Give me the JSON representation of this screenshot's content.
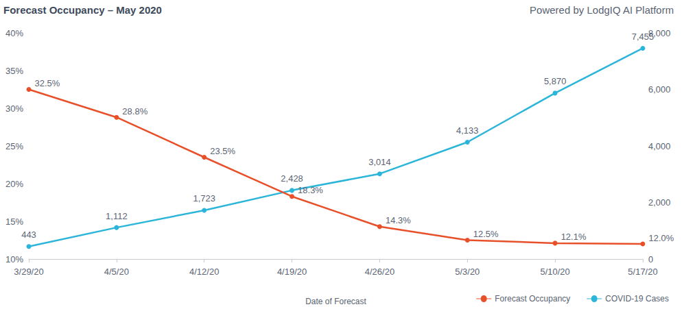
{
  "chart_data": {
    "type": "line",
    "title": "Forecast Occupancy – May 2020",
    "subtitle": "Powered by LodgIQ AI Platform",
    "x_label": "Date of Forecast",
    "categories": [
      "3/29/20",
      "4/5/20",
      "4/12/20",
      "4/19/20",
      "4/26/20",
      "5/3/20",
      "5/10/20",
      "5/17/20"
    ],
    "series": [
      {
        "name": "Forecast Occupancy",
        "color": "#e8502a",
        "axis": "y",
        "values": [
          32.5,
          28.8,
          23.5,
          18.3,
          14.3,
          12.5,
          12.1,
          12.0
        ],
        "value_labels": [
          "32.5%",
          "28.8%",
          "23.5%",
          "18.3%",
          "14.3%",
          "12.5%",
          "12.1%",
          "12.0%"
        ]
      },
      {
        "name": "COVID-19 Cases",
        "color": "#2bb5d9",
        "axis": "y2",
        "values": [
          443,
          1112,
          1723,
          2428,
          3014,
          4133,
          5870,
          7455
        ],
        "value_labels": [
          "443",
          "1,112",
          "1,723",
          "2,428",
          "3,014",
          "4,133",
          "5,870",
          "7,455"
        ]
      }
    ],
    "ylim": [
      10,
      40
    ],
    "yticks": [
      {
        "value": 10,
        "label": "10%"
      },
      {
        "value": 15,
        "label": "15%"
      },
      {
        "value": 20,
        "label": "20%"
      },
      {
        "value": 25,
        "label": "25%"
      },
      {
        "value": 30,
        "label": "30%"
      },
      {
        "value": 35,
        "label": "35%"
      },
      {
        "value": 40,
        "label": "40%"
      }
    ],
    "y2lim": [
      0,
      8000
    ],
    "y2ticks": [
      0,
      {
        "value": 2000,
        "label": "2,000"
      },
      {
        "value": 4000,
        "label": "4,000"
      },
      {
        "value": 6000,
        "label": "6,000"
      },
      {
        "value": 8000,
        "label": "8,000"
      }
    ],
    "grid": false,
    "legend": "bottom-right",
    "data_labels": true,
    "marker": "circle"
  }
}
